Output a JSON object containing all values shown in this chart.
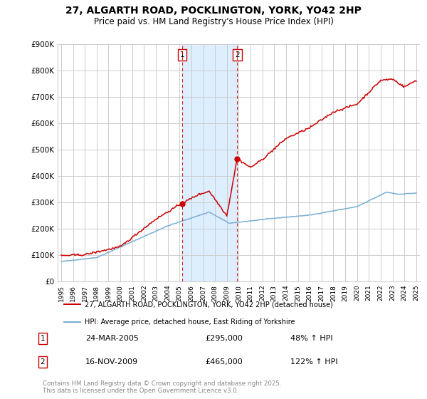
{
  "title": "27, ALGARTH ROAD, POCKLINGTON, YORK, YO42 2HP",
  "subtitle": "Price paid vs. HM Land Registry's House Price Index (HPI)",
  "ylim": [
    0,
    900000
  ],
  "yticks": [
    0,
    100000,
    200000,
    300000,
    400000,
    500000,
    600000,
    700000,
    800000,
    900000
  ],
  "ytick_labels": [
    "£0",
    "£100K",
    "£200K",
    "£300K",
    "£400K",
    "£500K",
    "£600K",
    "£700K",
    "£800K",
    "£900K"
  ],
  "x_start_year": 1995,
  "x_end_year": 2025,
  "sale1_year": 2005.22,
  "sale2_year": 2009.88,
  "sale1_price": 295000,
  "sale2_price": 465000,
  "sale1_label": "1",
  "sale2_label": "2",
  "sale1_date": "24-MAR-2005",
  "sale2_date": "16-NOV-2009",
  "sale1_pct": "48%",
  "sale2_pct": "122%",
  "legend_line1": "27, ALGARTH ROAD, POCKLINGTON, YORK, YO42 2HP (detached house)",
  "legend_line2": "HPI: Average price, detached house, East Riding of Yorkshire",
  "red_color": "#cc0000",
  "blue_color": "#7aafd4",
  "shade_color": "#ddeeff",
  "footer": "Contains HM Land Registry data © Crown copyright and database right 2025.\nThis data is licensed under the Open Government Licence v3.0.",
  "background_color": "#ffffff",
  "grid_color": "#cccccc",
  "title_fontsize": 10,
  "subtitle_fontsize": 8.5,
  "tick_fontsize": 7.5
}
